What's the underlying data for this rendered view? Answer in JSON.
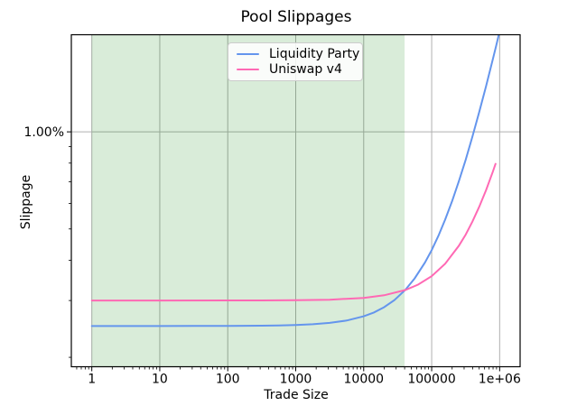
{
  "figure": {
    "background": "#ffffff"
  },
  "chart_data": {
    "type": "line",
    "title": "Pool Slippages",
    "xlabel": "Trade Size",
    "ylabel": "Slippage",
    "x_scale": "log",
    "y_scale": "log",
    "xlim": [
      0.5,
      2000000
    ],
    "ylim_pct": [
      0.187,
      2.0
    ],
    "grid": true,
    "grid_color": "#b0b0b0",
    "spine_color": "#000000",
    "x_ticks": [
      {
        "value": 1,
        "label": "1"
      },
      {
        "value": 10,
        "label": "10"
      },
      {
        "value": 100,
        "label": "100"
      },
      {
        "value": 1000,
        "label": "1000"
      },
      {
        "value": 10000,
        "label": "10000"
      },
      {
        "value": 100000,
        "label": "100000"
      },
      {
        "value": 1000000,
        "label": "1e+06"
      }
    ],
    "y_ticks": [
      {
        "value": 1.0,
        "label": "1.00%"
      }
    ],
    "y_minor_ticks": [
      0.2,
      0.3,
      0.4,
      0.5,
      0.6,
      0.7,
      0.8,
      0.9
    ],
    "highlight_region": {
      "x_start": 1,
      "x_end": 40000,
      "color": "#008000",
      "opacity": 0.15
    },
    "legend_position": "upper center",
    "series": [
      {
        "name": "Liquidity Party",
        "color": "#6495ED",
        "points": [
          [
            1,
            0.25
          ],
          [
            3.2,
            0.25
          ],
          [
            10,
            0.25
          ],
          [
            32,
            0.2501
          ],
          [
            100,
            0.2502
          ],
          [
            316,
            0.2506
          ],
          [
            562,
            0.251
          ],
          [
            1000,
            0.2518
          ],
          [
            1780,
            0.2532
          ],
          [
            3160,
            0.2557
          ],
          [
            5620,
            0.2601
          ],
          [
            10000,
            0.268
          ],
          [
            14100,
            0.2754
          ],
          [
            20000,
            0.286
          ],
          [
            28200,
            0.3008
          ],
          [
            40700,
            0.3233
          ],
          [
            56200,
            0.3512
          ],
          [
            79400,
            0.3929
          ],
          [
            100000,
            0.43
          ],
          [
            126000,
            0.4768
          ],
          [
            158000,
            0.5344
          ],
          [
            200000,
            0.61
          ],
          [
            251000,
            0.7018
          ],
          [
            316000,
            0.8188
          ],
          [
            398000,
            0.9664
          ],
          [
            501000,
            1.1518
          ],
          [
            631000,
            1.3858
          ],
          [
            794000,
            1.6792
          ],
          [
            891000,
            1.8538
          ],
          [
            1000000,
            2.05
          ]
        ]
      },
      {
        "name": "Uniswap v4",
        "color": "#FF69B4",
        "points": [
          [
            1,
            0.3
          ],
          [
            10,
            0.3
          ],
          [
            100,
            0.3001
          ],
          [
            316,
            0.3002
          ],
          [
            1000,
            0.3006
          ],
          [
            3160,
            0.3018
          ],
          [
            10000,
            0.3057
          ],
          [
            20000,
            0.3114
          ],
          [
            40700,
            0.3232
          ],
          [
            63100,
            0.336
          ],
          [
            100000,
            0.357
          ],
          [
            158000,
            0.3901
          ],
          [
            251000,
            0.4431
          ],
          [
            316000,
            0.4801
          ],
          [
            398000,
            0.5269
          ],
          [
            501000,
            0.5856
          ],
          [
            631000,
            0.6597
          ],
          [
            794000,
            0.7526
          ],
          [
            870000,
            0.796
          ]
        ]
      }
    ]
  }
}
